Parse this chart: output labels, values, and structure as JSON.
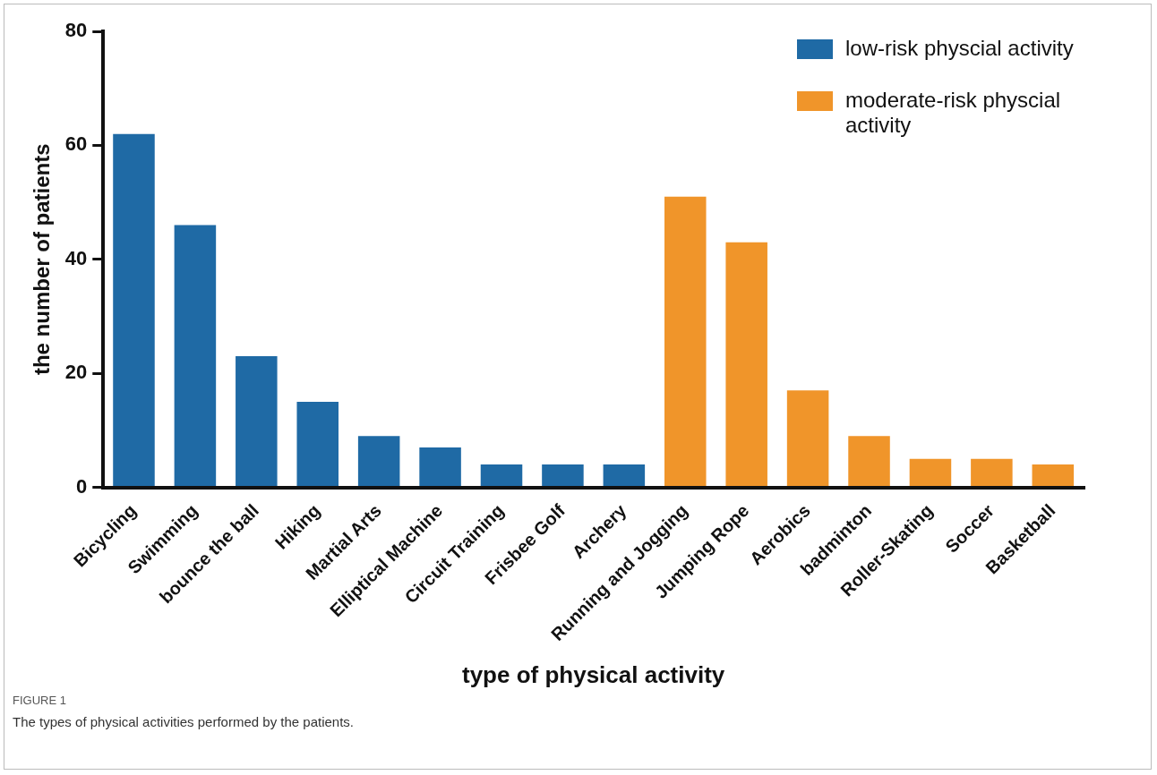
{
  "chart_data": {
    "type": "bar",
    "xlabel": "type of physical activity",
    "ylabel": "the number of patients",
    "categories": [
      "Bicycling",
      "Swimming",
      "bounce the ball",
      "Hiking",
      "Martial Arts",
      "Elliptical Machine",
      "Circuit Training",
      "Frisbee Golf",
      "Archery",
      "Running and Jogging",
      "Jumping Rope",
      "Aerobics",
      "badminton",
      "Roller-Skating",
      "Soccer",
      "Basketball"
    ],
    "series": [
      {
        "name": "low-risk physcial activity",
        "color": "#1f6aa5",
        "values": [
          62,
          46,
          23,
          15,
          9,
          7,
          4,
          4,
          4,
          null,
          null,
          null,
          null,
          null,
          null,
          null
        ]
      },
      {
        "name": "moderate-risk physcial activity",
        "color": "#f0952a",
        "values": [
          null,
          null,
          null,
          null,
          null,
          null,
          null,
          null,
          null,
          51,
          43,
          17,
          9,
          5,
          5,
          4
        ]
      }
    ],
    "ylim": [
      0,
      80
    ],
    "yticks": [
      0,
      20,
      40,
      60,
      80
    ],
    "grid": false,
    "legend": "top right",
    "annotations": [
      "FIGURE 1",
      "The types of physical activities performed by the patients."
    ]
  }
}
